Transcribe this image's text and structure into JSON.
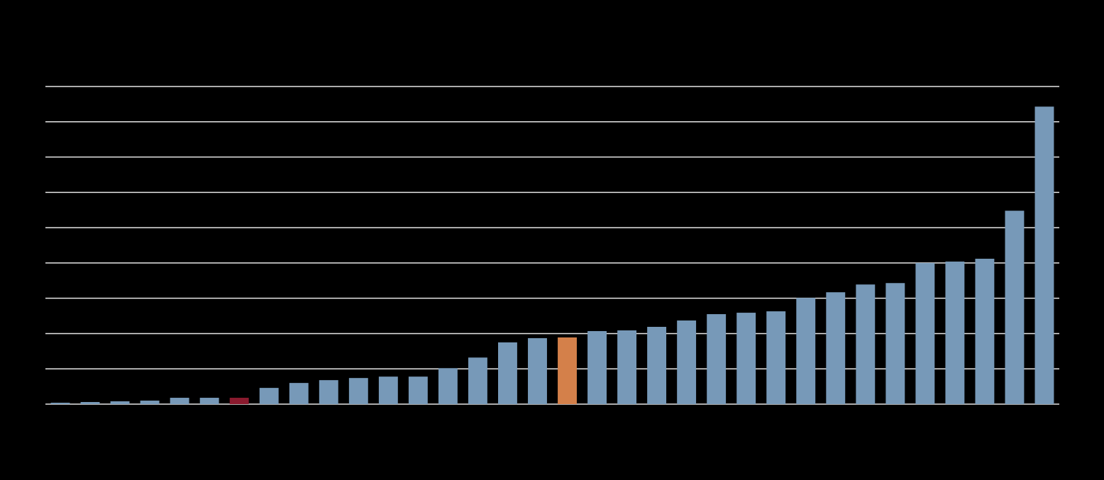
{
  "chart_data": {
    "type": "bar",
    "values": [
      0.04,
      0.06,
      0.08,
      0.1,
      0.18,
      0.18,
      0.18,
      0.46,
      0.6,
      0.68,
      0.74,
      0.78,
      0.78,
      1.02,
      1.32,
      1.75,
      1.87,
      1.89,
      2.07,
      2.09,
      2.19,
      2.37,
      2.55,
      2.59,
      2.63,
      3.01,
      3.17,
      3.39,
      3.43,
      4.0,
      4.04,
      4.12,
      5.48,
      8.43
    ],
    "colors": [
      "#7799b8",
      "#7799b8",
      "#7799b8",
      "#7799b8",
      "#7799b8",
      "#7799b8",
      "#8b1a2e",
      "#7799b8",
      "#7799b8",
      "#7799b8",
      "#7799b8",
      "#7799b8",
      "#7799b8",
      "#7799b8",
      "#7799b8",
      "#7799b8",
      "#7799b8",
      "#d4804a",
      "#7799b8",
      "#7799b8",
      "#7799b8",
      "#7799b8",
      "#7799b8",
      "#7799b8",
      "#7799b8",
      "#7799b8",
      "#7799b8",
      "#7799b8",
      "#7799b8",
      "#7799b8",
      "#7799b8",
      "#7799b8",
      "#7799b8",
      "#7799b8"
    ],
    "ylim": [
      0,
      9
    ],
    "yticks": [
      0,
      1,
      2,
      3,
      4,
      5,
      6,
      7,
      8,
      9
    ],
    "grid": true
  }
}
